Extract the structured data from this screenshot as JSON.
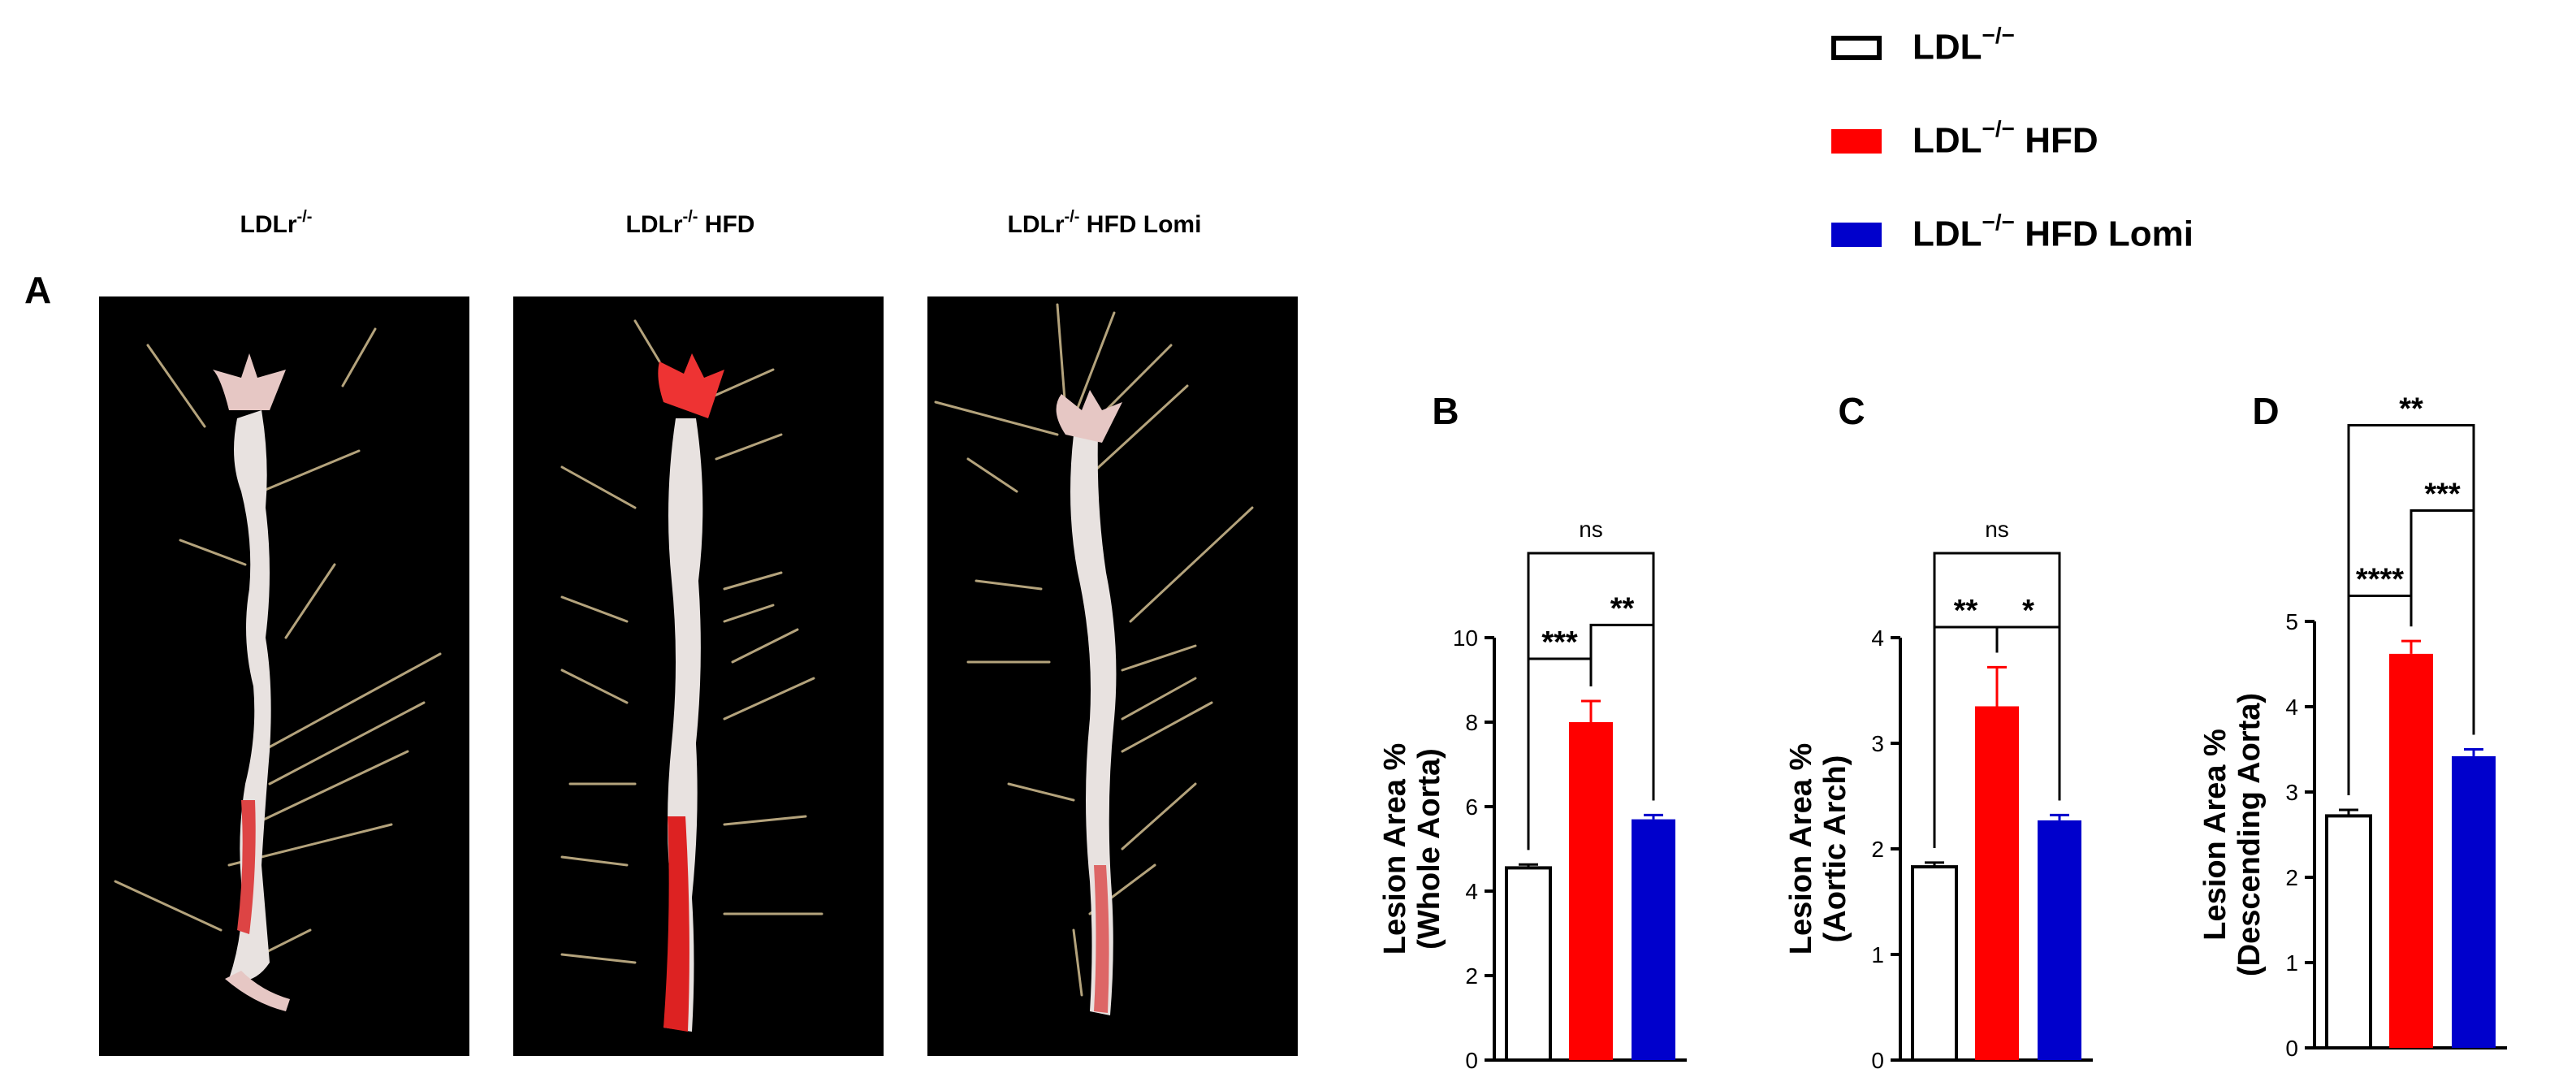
{
  "figure": {
    "panel_a_label": "A",
    "photos": [
      {
        "title_base": "LDLr",
        "title_sup": "-/-",
        "title_rest": ""
      },
      {
        "title_base": "LDLr",
        "title_sup": "-/-",
        "title_rest": " HFD"
      },
      {
        "title_base": "LDLr",
        "title_sup": "-/-",
        "title_rest": " HFD Lomi"
      }
    ]
  },
  "legend": {
    "items": [
      {
        "base": "LDL",
        "sup": "−/−",
        "rest": "",
        "fill": "#ffffff",
        "border": "#000000"
      },
      {
        "base": "LDL",
        "sup": "−/−",
        "rest": " HFD",
        "fill": "#ff0000",
        "border": "#ff0000"
      },
      {
        "base": "LDL",
        "sup": "−/−",
        "rest": " HFD Lomi",
        "fill": "#0000cc",
        "border": "#0000cc"
      }
    ]
  },
  "chart_data": [
    {
      "panel": "B",
      "type": "bar",
      "ylabel_line1": "Lesion Area %",
      "ylabel_line2": "(Whole Aorta)",
      "ylim": [
        0,
        10
      ],
      "yticks": [
        "0",
        "2",
        "4",
        "6",
        "8",
        "10"
      ],
      "categories": [
        "LDL−/−",
        "LDL−/− HFD",
        "LDL−/− HFD Lomi"
      ],
      "values": [
        4.55,
        8.0,
        5.7
      ],
      "errors": [
        0.08,
        0.5,
        0.1
      ],
      "colors": [
        "#ffffff",
        "#ff0000",
        "#0000cc"
      ],
      "significance": [
        {
          "from": 0,
          "to": 2,
          "label": "ns",
          "level": 12.0
        },
        {
          "from": 1,
          "to": 2,
          "label": "**",
          "level": 10.3
        },
        {
          "from": 0,
          "to": 1,
          "label": "***",
          "level": 9.5
        }
      ]
    },
    {
      "panel": "C",
      "type": "bar",
      "ylabel_line1": "Lesion Area %",
      "ylabel_line2": "(Aortic Arch)",
      "ylim": [
        0,
        4
      ],
      "yticks": [
        "0",
        "1",
        "2",
        "3",
        "4"
      ],
      "categories": [
        "LDL−/−",
        "LDL−/− HFD",
        "LDL−/− HFD Lomi"
      ],
      "values": [
        1.83,
        3.35,
        2.27
      ],
      "errors": [
        0.04,
        0.37,
        0.05
      ],
      "colors": [
        "#ffffff",
        "#ff0000",
        "#0000cc"
      ],
      "significance": [
        {
          "from": 0,
          "to": 2,
          "label": "ns",
          "level": 4.8
        },
        {
          "from": 0,
          "to": 1,
          "label": "**",
          "level": 4.1
        },
        {
          "from": 1,
          "to": 2,
          "label": "*",
          "level": 4.1
        }
      ]
    },
    {
      "panel": "D",
      "type": "bar",
      "ylabel_line1": "Lesion Area %",
      "ylabel_line2": "(Descending  Aorta)",
      "ylim": [
        0,
        5
      ],
      "yticks": [
        "0",
        "1",
        "2",
        "3",
        "4",
        "5"
      ],
      "categories": [
        "LDL−/−",
        "LDL−/− HFD",
        "LDL−/− HFD Lomi"
      ],
      "values": [
        2.72,
        4.62,
        3.42
      ],
      "errors": [
        0.07,
        0.15,
        0.08
      ],
      "colors": [
        "#ffffff",
        "#ff0000",
        "#0000cc"
      ],
      "significance": [
        {
          "from": 0,
          "to": 2,
          "label": "**",
          "level": 7.3
        },
        {
          "from": 1,
          "to": 2,
          "label": "***",
          "level": 6.3
        },
        {
          "from": 0,
          "to": 1,
          "label": "****",
          "level": 5.3
        }
      ]
    }
  ]
}
